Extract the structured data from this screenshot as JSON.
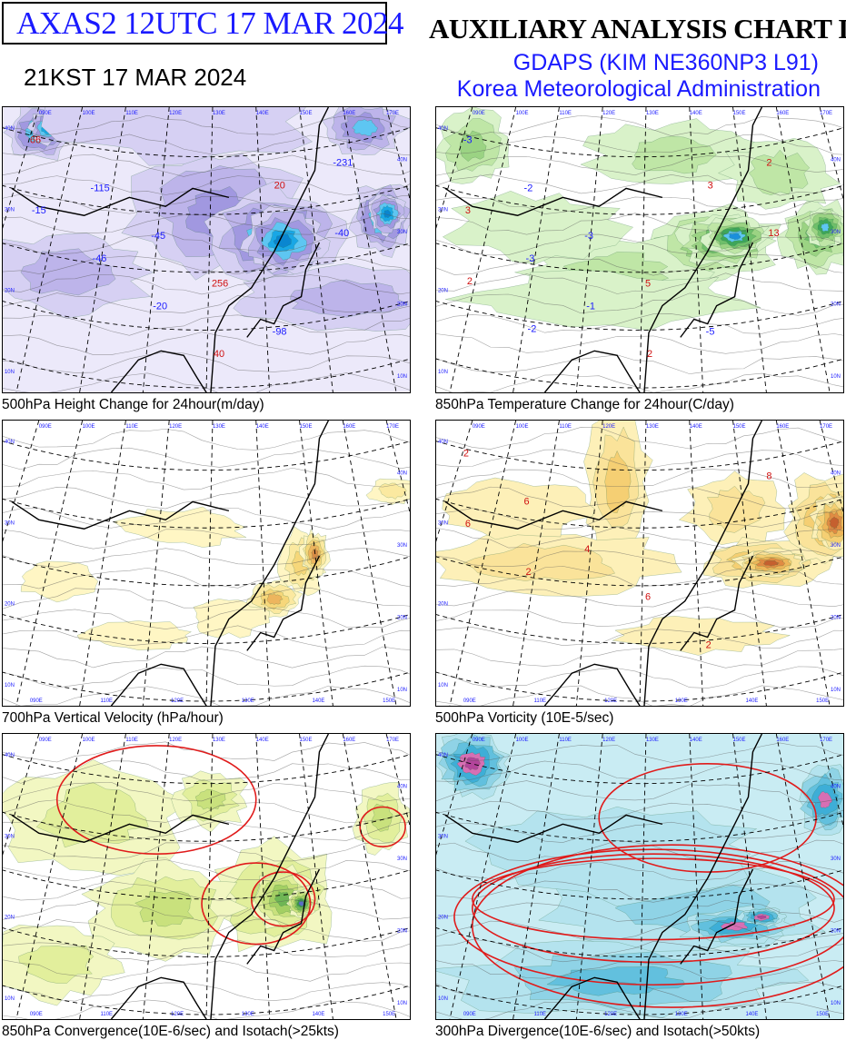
{
  "header": {
    "product_id": "AXAS2  12UTC 17 MAR 2024",
    "local_time": "21KST 17 MAR 2024",
    "chart_title": "AUXILIARY ANALYSIS CHART II",
    "model": "GDAPS (KIM NE360NP3 L91)",
    "agency": "Korea Meteorological Administration"
  },
  "panels": [
    {
      "id": "p1",
      "caption": "500hPa Height Change for 24hour(m/day)",
      "palette": "blue"
    },
    {
      "id": "p2",
      "caption": "850hPa Temperature Change for 24hour(C/day)",
      "palette": "green"
    },
    {
      "id": "p3",
      "caption": "700hPa Vertical Velocity (hPa/hour)",
      "palette": "yellow"
    },
    {
      "id": "p4",
      "caption": "500hPa Vorticity (10E-5/sec)",
      "palette": "orange"
    },
    {
      "id": "p5",
      "caption": "850hPa Convergence(10E-6/sec) and Isotach(>25kts)",
      "palette": "lime"
    },
    {
      "id": "p6",
      "caption": "300hPa Divergence(10E-6/sec) and Isotach(>50kts)",
      "palette": "cyan"
    }
  ],
  "map_labels": {
    "top_longitudes": [
      "090E",
      "100E",
      "110E",
      "120E",
      "130E",
      "140E",
      "150E",
      "160E",
      "170E"
    ],
    "bottom_longitudes": [
      "090E",
      "110E",
      "120E",
      "130E",
      "140E",
      "150E"
    ],
    "left_latitudes": [
      "40N",
      "30N",
      "20N",
      "10N"
    ],
    "right_latitudes": [
      "40N",
      "30N",
      "20N",
      "10N"
    ]
  },
  "annotations": {
    "p1": [
      "66",
      "-115",
      "-45",
      "256",
      "-98",
      "-231",
      "-15",
      "-46",
      "-20",
      "40",
      "20",
      "-40"
    ],
    "p2": [
      "-3",
      "-2",
      "-3",
      "5",
      "-5",
      "2",
      "3",
      "-3",
      "-1",
      "2",
      "3",
      "13",
      "2",
      "-2"
    ],
    "p4": [
      "2",
      "6",
      "4",
      "6",
      "2",
      "8",
      "6",
      "2"
    ]
  }
}
